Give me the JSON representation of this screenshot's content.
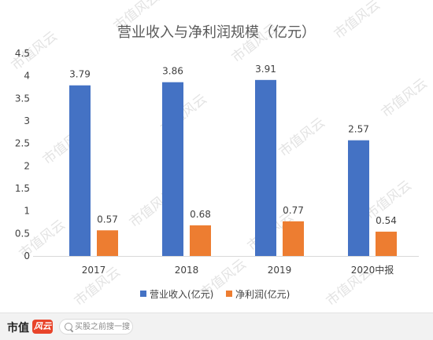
{
  "chart_data": {
    "type": "bar",
    "title": "营业收入与净利润规模（亿元）",
    "categories": [
      "2017",
      "2018",
      "2019",
      "2020中报"
    ],
    "series": [
      {
        "name": "营业收入(亿元)",
        "values": [
          3.79,
          3.86,
          3.91,
          2.57
        ],
        "color": "#4472c4"
      },
      {
        "name": "净利润(亿元)",
        "values": [
          0.57,
          0.68,
          0.77,
          0.54
        ],
        "color": "#ed7d31"
      }
    ],
    "data_labels": [
      [
        "3.79",
        "3.86",
        "3.91",
        "2.57"
      ],
      [
        "0.57",
        "0.68",
        "0.77",
        "0.54"
      ]
    ],
    "ylim": [
      0,
      4.5
    ],
    "yticks": [
      "0",
      "0.5",
      "1",
      "1.5",
      "2",
      "2.5",
      "3",
      "3.5",
      "4",
      "4.5"
    ],
    "xlabel": "",
    "ylabel": "",
    "grid": false,
    "legend_position": "bottom"
  },
  "watermark": {
    "text": "市值风云",
    "color": "#e3e3e3"
  },
  "footer": {
    "brand_text": "市值",
    "brand_badge": "风云",
    "search_placeholder": "买股之前搜一搜",
    "search_icon": "search-icon"
  }
}
